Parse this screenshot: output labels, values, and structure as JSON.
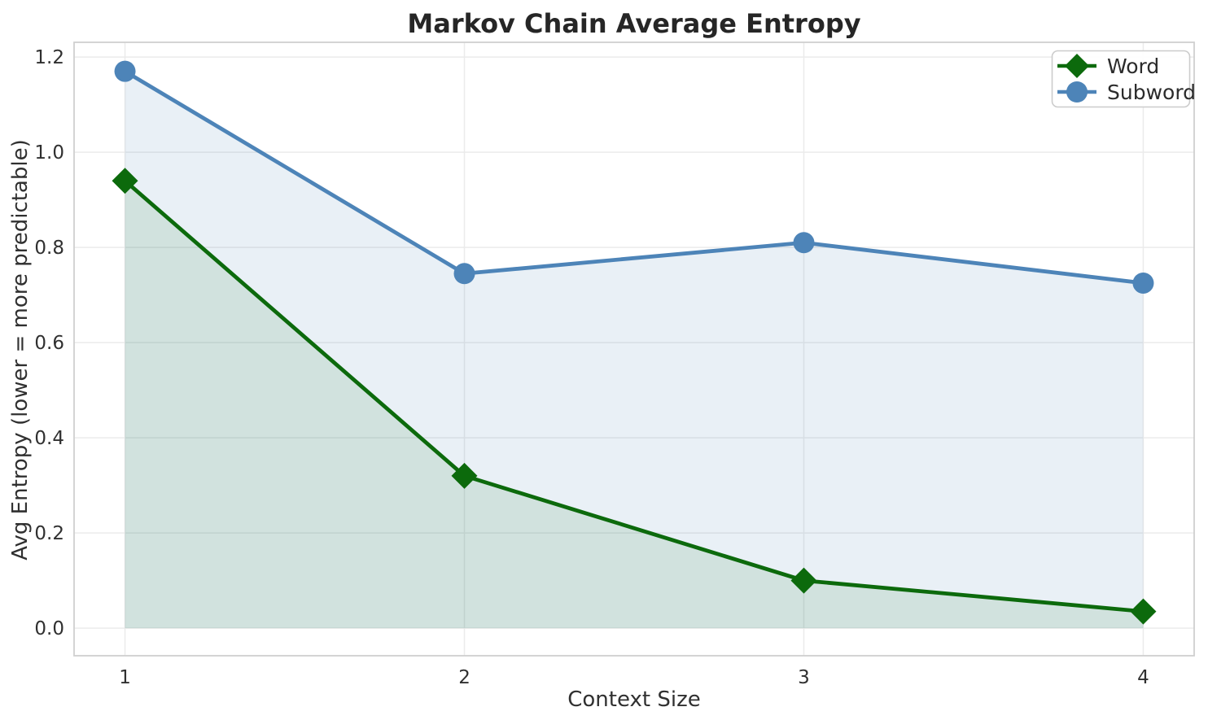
{
  "chart_data": {
    "type": "line",
    "title": "Markov Chain Average Entropy",
    "xlabel": "Context Size",
    "ylabel": "Avg Entropy (lower = more predictable)",
    "x": [
      1,
      2,
      3,
      4
    ],
    "series": [
      {
        "name": "Word",
        "color": "#0c6a0c",
        "marker": "diamond",
        "values": [
          0.94,
          0.32,
          0.1,
          0.035
        ],
        "fill_alpha": 0.11
      },
      {
        "name": "Subword",
        "color": "#4d84b8",
        "marker": "circle",
        "values": [
          1.17,
          0.745,
          0.81,
          0.725
        ],
        "fill_alpha": 0.12
      }
    ],
    "fill_to_zero": true,
    "xticks": [
      "1",
      "2",
      "3",
      "4"
    ],
    "yticks": [
      "0.0",
      "0.2",
      "0.4",
      "0.6",
      "0.8",
      "1.0",
      "1.2"
    ],
    "xlim": [
      0.85,
      4.15
    ],
    "ylim": [
      -0.058,
      1.231
    ],
    "grid": true,
    "legend_position": "upper right",
    "colors": {
      "grid": "#ebebeb",
      "spine": "#d0d0d0",
      "background": "#ffffff"
    }
  }
}
